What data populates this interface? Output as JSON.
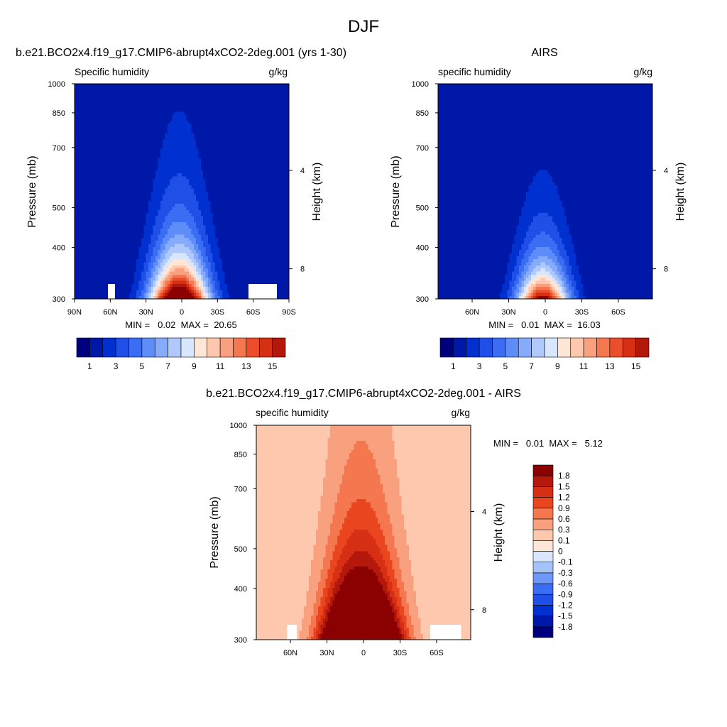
{
  "figure": {
    "title": "DJF"
  },
  "chart_data": [
    {
      "type": "heatmap",
      "title": "b.e21.BCO2x4.f19_g17.CMIP6-abrupt4xCO2-2deg.001 (yrs 1-30)",
      "left_string": "Specific humidity",
      "right_string": "g/kg",
      "ylabel": "Pressure (mb)",
      "ylabel_right": "Height (km)",
      "y_ticks": [
        "300",
        "400",
        "500",
        "700",
        "850",
        "1000"
      ],
      "y_right_ticks": [
        "8",
        "4"
      ],
      "x_ticks": [
        "90N",
        "60N",
        "30N",
        "0",
        "30S",
        "60S",
        "90S"
      ],
      "ylim": [
        1000,
        300
      ],
      "stats": "MIN =   0.02  MAX =  20.65",
      "peak": 20.65,
      "spread_deg": 24,
      "scale_height_mb": 215,
      "levels": [
        0,
        1,
        2,
        3,
        4,
        5,
        6,
        7,
        8,
        9,
        10,
        11,
        12,
        13,
        14,
        15
      ],
      "colorbar_labels": [
        "1",
        "3",
        "5",
        "7",
        "9",
        "11",
        "13",
        "15"
      ],
      "colorbar_orientation": "horizontal"
    },
    {
      "type": "heatmap",
      "title": "AIRS",
      "left_string": "specific humidity",
      "right_string": "g/kg",
      "ylabel": "Pressure (mb)",
      "ylabel_right": "Height (km)",
      "y_ticks": [
        "300",
        "400",
        "500",
        "700",
        "850",
        "1000"
      ],
      "y_right_ticks": [
        "8",
        "4"
      ],
      "x_ticks": [
        "60N",
        "30N",
        "0",
        "30S",
        "60S"
      ],
      "ylim": [
        1000,
        300
      ],
      "stats": "MIN =   0.01  MAX =  16.03",
      "peak": 16.03,
      "spread_deg": 21,
      "scale_height_mb": 185,
      "levels": [
        0,
        1,
        2,
        3,
        4,
        5,
        6,
        7,
        8,
        9,
        10,
        11,
        12,
        13,
        14,
        15
      ],
      "colorbar_labels": [
        "1",
        "3",
        "5",
        "7",
        "9",
        "11",
        "13",
        "15"
      ],
      "colorbar_orientation": "horizontal"
    },
    {
      "type": "heatmap",
      "title": "b.e21.BCO2x4.f19_g17.CMIP6-abrupt4xCO2-2deg.001 - AIRS",
      "left_string": "specific humidity",
      "right_string": "g/kg",
      "ylabel": "Pressure (mb)",
      "ylabel_right": "Height (km)",
      "y_ticks": [
        "300",
        "400",
        "500",
        "700",
        "850",
        "1000"
      ],
      "y_right_ticks": [
        "8",
        "4"
      ],
      "x_ticks": [
        "60N",
        "30N",
        "0",
        "30S",
        "60S"
      ],
      "ylim": [
        1000,
        300
      ],
      "stats": "MIN =   0.01  MAX =   5.12",
      "levels": [
        -1.8,
        -1.5,
        -1.2,
        -0.9,
        -0.6,
        -0.3,
        -0.1,
        0,
        0.1,
        0.3,
        0.6,
        0.9,
        1.2,
        1.5,
        1.8
      ],
      "colorbar_labels": [
        "1.8",
        "1.5",
        "1.2",
        "0.9",
        "0.6",
        "0.3",
        "0.1",
        "0",
        "-0.1",
        "-0.3",
        "-0.6",
        "-0.9",
        "-1.2",
        "-1.5",
        "-1.8"
      ],
      "colorbar_orientation": "vertical"
    }
  ],
  "colors": {
    "humidity_palette": [
      "#00007f",
      "#0018a8",
      "#0030d0",
      "#1f4fe6",
      "#3a6cf4",
      "#5e8cf8",
      "#86abfa",
      "#b0c9fc",
      "#d8e6fe",
      "#ffe6d6",
      "#fdc8ad",
      "#f9a07f",
      "#f47750",
      "#ec4d2a",
      "#d62f14",
      "#b3180a",
      "#8b0000"
    ],
    "difference_palette": [
      "#00007f",
      "#0018a8",
      "#0030d0",
      "#1f4fe6",
      "#3a6cf4",
      "#6e98f8",
      "#a6c2fb",
      "#d8e6fe",
      "#ffe6d6",
      "#fdc8ad",
      "#f9a07f",
      "#f47750",
      "#e9461f",
      "#d62f14",
      "#b3180a",
      "#8b0000"
    ],
    "missing": "#ffffff"
  }
}
